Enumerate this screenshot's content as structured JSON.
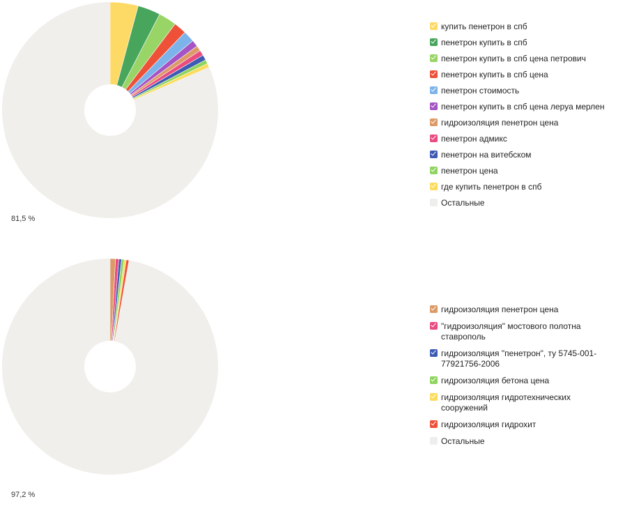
{
  "chart_data": [
    {
      "type": "pie",
      "center_label": "81,5 %",
      "other_label": "Остальные",
      "slices": [
        {
          "name": "купить пенетрон в спб",
          "value": 4.2,
          "color": "#fdd966"
        },
        {
          "name": "пенетрон купить в спб",
          "value": 3.4,
          "color": "#47a55c"
        },
        {
          "name": "пенетрон купить в спб цена петрович",
          "value": 2.7,
          "color": "#99d466"
        },
        {
          "name": "пенетрон купить в спб цена",
          "value": 1.9,
          "color": "#ee5138"
        },
        {
          "name": "пенетрон стоимость",
          "value": 1.7,
          "color": "#7bb3ea"
        },
        {
          "name": "пенетрон купить в спб цена леруа мерлен",
          "value": 1.0,
          "color": "#a454c4"
        },
        {
          "name": "гидроизоляция пенетрон цена",
          "value": 0.8,
          "color": "#dc9a66"
        },
        {
          "name": "пенетрон адмикс",
          "value": 0.8,
          "color": "#ea4c80"
        },
        {
          "name": "пенетрон на витебском",
          "value": 0.8,
          "color": "#3e5bb4"
        },
        {
          "name": "пенетрон цена",
          "value": 0.6,
          "color": "#8fd45f"
        },
        {
          "name": "где купить пенетрон в спб",
          "value": 0.6,
          "color": "#fbdc5c"
        },
        {
          "name": "Остальные",
          "value": 81.5,
          "color": "#f0efeb"
        }
      ]
    },
    {
      "type": "pie",
      "center_label": "97,2 %",
      "other_label": "Остальные",
      "slices": [
        {
          "name": "гидроизоляция пенетрон цена",
          "value": 0.8,
          "color": "#dc9a66"
        },
        {
          "name": "\"гидроизоляция\" мостового полотна ставрополь",
          "value": 0.5,
          "color": "#ea4c80"
        },
        {
          "name": "гидроизоляция \"пенетрон\", ту 5745-001-77921756-2006",
          "value": 0.4,
          "color": "#3e5bb4"
        },
        {
          "name": "гидроизоляция бетона цена",
          "value": 0.4,
          "color": "#8fd45f"
        },
        {
          "name": "гидроизоляция гидротехнических сооружений",
          "value": 0.3,
          "color": "#fbdc5c"
        },
        {
          "name": "гидроизоляция гидрохит",
          "value": 0.4,
          "color": "#ee5138"
        },
        {
          "name": "Остальные",
          "value": 97.2,
          "color": "#f0efeb"
        }
      ]
    }
  ]
}
